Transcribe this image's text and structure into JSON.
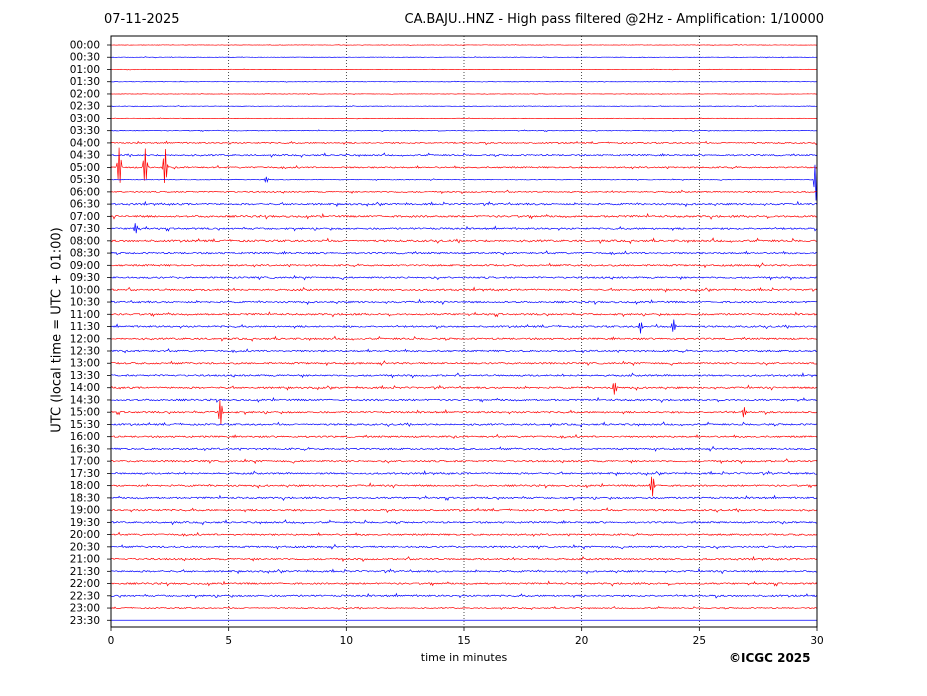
{
  "header": {
    "date": "07-11-2025",
    "title": "CA.BAJU..HNZ - High pass filtered @2Hz - Amplification: 1/10000"
  },
  "footer": {
    "copyright": "©ICGC 2025"
  },
  "chart_data": {
    "type": "line",
    "chart_kind": "helicorder seismogram",
    "title": "CA.BAJU..HNZ - High pass filtered @2Hz - Amplification: 1/10000",
    "xlabel": "time in minutes",
    "ylabel": "UTC (local time = UTC + 01:00)",
    "xlim": [
      0,
      30
    ],
    "x_ticks": [
      0,
      5,
      10,
      15,
      20,
      25,
      30
    ],
    "grid": "vertical dotted lines at 5-minute intervals",
    "row_labels": [
      "00:00",
      "00:30",
      "01:00",
      "01:30",
      "02:00",
      "02:30",
      "03:00",
      "03:30",
      "04:00",
      "04:30",
      "05:00",
      "05:30",
      "06:00",
      "06:30",
      "07:00",
      "07:30",
      "08:00",
      "08:30",
      "09:00",
      "09:30",
      "10:00",
      "10:30",
      "11:00",
      "11:30",
      "12:00",
      "12:30",
      "13:00",
      "13:30",
      "14:00",
      "14:30",
      "15:00",
      "15:30",
      "16:00",
      "16:30",
      "17:00",
      "17:30",
      "18:00",
      "18:30",
      "19:00",
      "19:30",
      "20:00",
      "20:30",
      "21:00",
      "21:30",
      "22:00",
      "22:30",
      "23:00",
      "23:30"
    ],
    "trace_colors": [
      "#ff0000",
      "#0000ff"
    ],
    "trace_amplitude": [
      0.2,
      0.2,
      0.2,
      0.2,
      0.2,
      0.2,
      0.2,
      0.3,
      0.6,
      0.7,
      0.7,
      0.3,
      0.6,
      0.8,
      0.9,
      0.8,
      0.9,
      0.8,
      0.8,
      0.8,
      0.8,
      0.8,
      0.8,
      0.8,
      0.8,
      0.8,
      0.8,
      0.8,
      0.8,
      0.8,
      0.8,
      0.8,
      0.8,
      0.8,
      0.8,
      0.8,
      0.8,
      0.8,
      0.8,
      0.8,
      0.8,
      0.8,
      0.8,
      0.8,
      0.8,
      0.8,
      0.5,
      0.0
    ],
    "events": [
      {
        "row": "05:00",
        "minute": 0.35,
        "amplitude": 3.5
      },
      {
        "row": "05:00",
        "minute": 1.45,
        "amplitude": 3.2
      },
      {
        "row": "05:00",
        "minute": 2.3,
        "amplitude": 3.3
      },
      {
        "row": "05:30",
        "minute": 6.6,
        "amplitude": 0.5
      },
      {
        "row": "05:30",
        "minute": 29.95,
        "amplitude": 3.5
      },
      {
        "row": "07:30",
        "minute": 1.05,
        "amplitude": 1.0
      },
      {
        "row": "11:30",
        "minute": 22.5,
        "amplitude": 1.0
      },
      {
        "row": "11:30",
        "minute": 23.9,
        "amplitude": 1.2
      },
      {
        "row": "14:00",
        "minute": 21.4,
        "amplitude": 1.2
      },
      {
        "row": "15:00",
        "minute": 4.65,
        "amplitude": 2.5
      },
      {
        "row": "15:00",
        "minute": 26.9,
        "amplitude": 1.0
      },
      {
        "row": "18:00",
        "minute": 23.0,
        "amplitude": 2.0
      }
    ]
  }
}
